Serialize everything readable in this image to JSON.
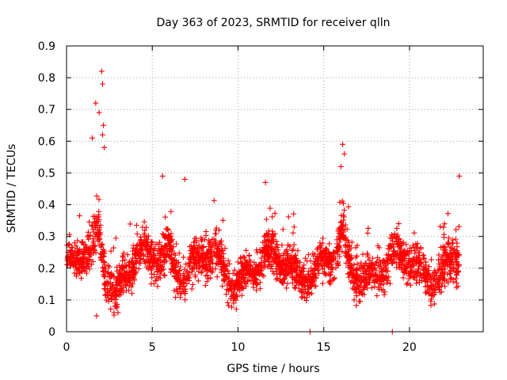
{
  "chart_data": {
    "type": "scatter",
    "title": "Day 363 of 2023, SRMTID for receiver qlln",
    "xlabel": "GPS time / hours",
    "ylabel": "SRMTID / TECUs",
    "xlim": [
      0,
      24.3
    ],
    "ylim": [
      0,
      0.9
    ],
    "xticks": [
      0,
      5,
      10,
      15,
      20
    ],
    "xtick_labels": [
      "0",
      "5",
      "10",
      "15",
      "20"
    ],
    "yticks": [
      0,
      0.1,
      0.2,
      0.3,
      0.4,
      0.5,
      0.6,
      0.7,
      0.8,
      0.9
    ],
    "ytick_labels": [
      "0",
      "0.1",
      "0.2",
      "0.3",
      "0.4",
      "0.5",
      "0.6",
      "0.7",
      "0.8",
      "0.9"
    ],
    "grid": true,
    "marker": "plus",
    "color": "#ff0000",
    "series": [
      {
        "name": "SRMTID",
        "x_range": [
          0.0,
          22.9
        ],
        "y_typical_range": [
          0.08,
          0.35
        ],
        "approx_point_count": 2700,
        "notable_points": [
          {
            "x": 2.05,
            "y": 0.82
          },
          {
            "x": 2.1,
            "y": 0.78
          },
          {
            "x": 1.7,
            "y": 0.72
          },
          {
            "x": 1.9,
            "y": 0.69
          },
          {
            "x": 2.15,
            "y": 0.65
          },
          {
            "x": 2.1,
            "y": 0.62
          },
          {
            "x": 1.5,
            "y": 0.61
          },
          {
            "x": 2.2,
            "y": 0.58
          },
          {
            "x": 16.1,
            "y": 0.59
          },
          {
            "x": 16.2,
            "y": 0.56
          },
          {
            "x": 16.0,
            "y": 0.52
          },
          {
            "x": 5.6,
            "y": 0.49
          },
          {
            "x": 6.9,
            "y": 0.48
          },
          {
            "x": 22.9,
            "y": 0.49
          },
          {
            "x": 11.6,
            "y": 0.47
          },
          {
            "x": 14.2,
            "y": 0.0
          },
          {
            "x": 19.0,
            "y": 0.0
          },
          {
            "x": 1.75,
            "y": 0.05
          },
          {
            "x": 3.0,
            "y": 0.06
          }
        ]
      }
    ]
  }
}
